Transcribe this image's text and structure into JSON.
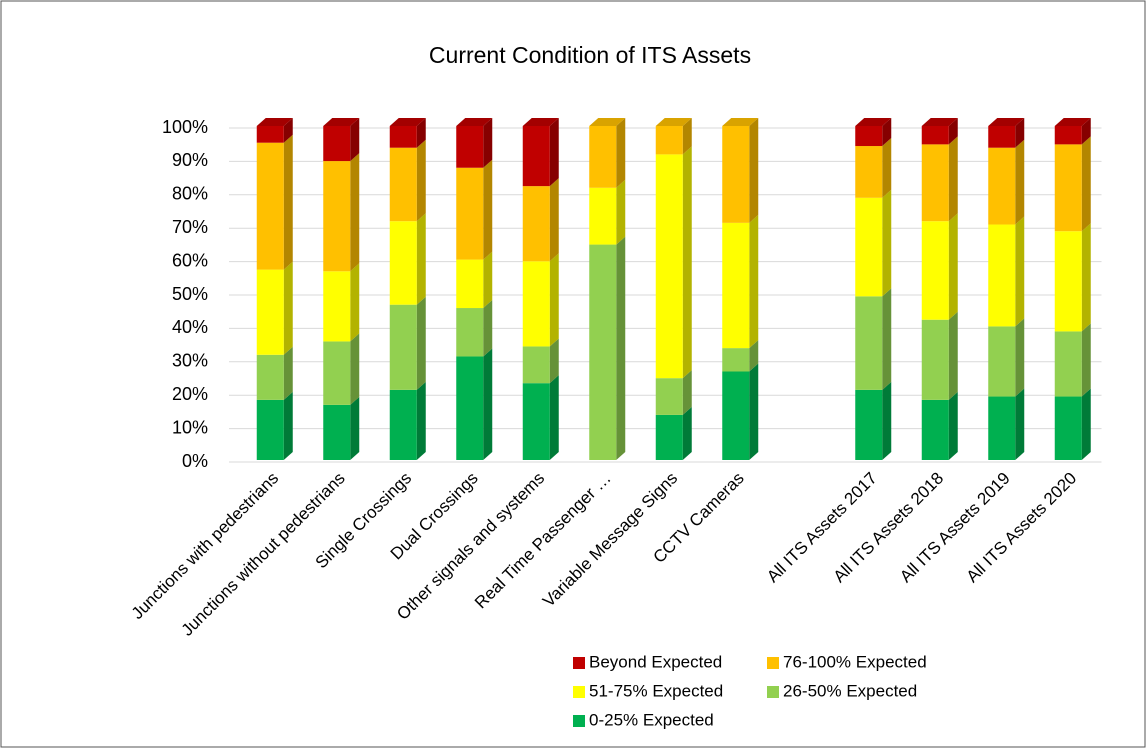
{
  "chart_data": {
    "type": "stacked_bar_3d",
    "title": "Current Condition of ITS Assets",
    "categories": [
      "Junctions with pedestrians",
      "Junctions without pedestrians",
      "Single Crossings",
      "Dual Crossings",
      "Other signals and systems",
      "Real Time Passenger …",
      "Variable Message Signs",
      "CCTV Cameras",
      null,
      "All ITS Assets 2017",
      "All ITS Assets 2018",
      "All ITS Assets 2019",
      "All ITS Assets 2020"
    ],
    "series": [
      {
        "name": "0-25% Expected",
        "color": "#00b050",
        "values": [
          18,
          16.5,
          21,
          31,
          23,
          0,
          13.5,
          26.5,
          null,
          21,
          18,
          19,
          19
        ]
      },
      {
        "name": "26-50% Expected",
        "color": "#92d050",
        "values": [
          13.5,
          19,
          25.5,
          14.5,
          11,
          64.5,
          11,
          7,
          null,
          28,
          24,
          21,
          19.5
        ]
      },
      {
        "name": "51-75% Expected",
        "color": "#ffff00",
        "values": [
          25.5,
          21,
          25,
          14.5,
          25.5,
          17,
          67,
          37.5,
          null,
          29.5,
          29.5,
          30.5,
          30
        ]
      },
      {
        "name": "76-100% Expected",
        "color": "#ffc000",
        "values": [
          38,
          33,
          22,
          27.5,
          22.5,
          18.5,
          8.5,
          29,
          null,
          15.5,
          23,
          23,
          26
        ]
      },
      {
        "name": "Beyond Expected",
        "color": "#c00000",
        "values": [
          5,
          10.5,
          6.5,
          12.5,
          18,
          0,
          0,
          0,
          null,
          6,
          5.5,
          6.5,
          5.5
        ]
      }
    ],
    "ylim": [
      0,
      100
    ],
    "yticks": [
      {
        "value": 0,
        "label": "0%"
      },
      {
        "value": 10,
        "label": "10%"
      },
      {
        "value": 20,
        "label": "20%"
      },
      {
        "value": 30,
        "label": "30%"
      },
      {
        "value": 40,
        "label": "40%"
      },
      {
        "value": 50,
        "label": "50%"
      },
      {
        "value": 60,
        "label": "60%"
      },
      {
        "value": 70,
        "label": "70%"
      },
      {
        "value": 80,
        "label": "80%"
      },
      {
        "value": 90,
        "label": "90%"
      },
      {
        "value": 100,
        "label": "100%"
      }
    ],
    "grid": true,
    "legend": "bottom"
  }
}
